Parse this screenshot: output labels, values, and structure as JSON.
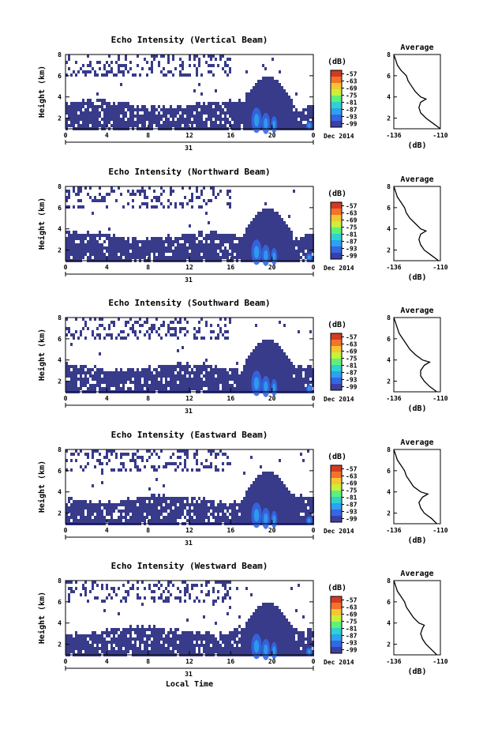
{
  "chart_data": [
    {
      "type": "heatmap",
      "title": "Echo Intensity (Vertical Beam)",
      "ylabel": "Height (km)",
      "xticks": [
        "0",
        "4",
        "8",
        "12",
        "16",
        "20",
        "0"
      ],
      "ylim": [
        1,
        8
      ],
      "yticks": [
        "2",
        "4",
        "6",
        "8"
      ],
      "date_day": "31",
      "date_label": "Dec 2014",
      "xlabel": "",
      "colorbar": {
        "unit": "(dB)",
        "ticks": [
          "-57",
          "-63",
          "-69",
          "-75",
          "-81",
          "-87",
          "-93",
          "-99"
        ]
      },
      "profile": {
        "title": "Average",
        "xlabel": "(dB)",
        "xticks": [
          "-136",
          "-110"
        ],
        "yticks": [
          "2",
          "4",
          "6",
          "8"
        ],
        "height_km": [
          1.0,
          1.5,
          2.0,
          2.5,
          3.0,
          3.5,
          3.8,
          4.0,
          4.5,
          5.0,
          5.5,
          6.0,
          6.5,
          7.0,
          7.5,
          8.0
        ],
        "db": [
          -110,
          -114,
          -118,
          -121,
          -122,
          -121,
          -118,
          -121,
          -124,
          -126,
          -128,
          -129,
          -132,
          -134,
          -135,
          -136
        ]
      }
    },
    {
      "type": "heatmap",
      "title": "Echo Intensity (Northward Beam)",
      "ylabel": "Height (km)",
      "xticks": [
        "0",
        "4",
        "8",
        "12",
        "16",
        "20",
        "0"
      ],
      "ylim": [
        1,
        8
      ],
      "yticks": [
        "2",
        "4",
        "6",
        "8"
      ],
      "date_day": "31",
      "date_label": "Dec 2014",
      "xlabel": "",
      "colorbar": {
        "unit": "(dB)",
        "ticks": [
          "-57",
          "-63",
          "-69",
          "-75",
          "-81",
          "-87",
          "-93",
          "-99"
        ]
      },
      "profile": {
        "title": "Average",
        "xlabel": "(dB)",
        "xticks": [
          "-136",
          "-110"
        ],
        "yticks": [
          "2",
          "4",
          "6",
          "8"
        ],
        "height_km": [
          1.0,
          1.5,
          2.0,
          2.5,
          3.0,
          3.5,
          3.8,
          4.0,
          4.5,
          5.0,
          5.5,
          6.0,
          6.5,
          7.0,
          7.5,
          8.0
        ],
        "db": [
          -111,
          -115,
          -119,
          -121,
          -122,
          -121,
          -118,
          -121,
          -124,
          -127,
          -129,
          -130,
          -132,
          -134,
          -135,
          -136
        ]
      }
    },
    {
      "type": "heatmap",
      "title": "Echo Intensity (Southward Beam)",
      "ylabel": "Height (km)",
      "xticks": [
        "0",
        "4",
        "8",
        "12",
        "16",
        "20",
        "0"
      ],
      "ylim": [
        1,
        8
      ],
      "yticks": [
        "2",
        "4",
        "6",
        "8"
      ],
      "date_day": "31",
      "date_label": "Dec 2014",
      "xlabel": "",
      "colorbar": {
        "unit": "(dB)",
        "ticks": [
          "-57",
          "-63",
          "-69",
          "-75",
          "-81",
          "-87",
          "-93",
          "-99"
        ]
      },
      "profile": {
        "title": "Average",
        "xlabel": "(dB)",
        "xticks": [
          "-136",
          "-110"
        ],
        "yticks": [
          "2",
          "4",
          "6",
          "8"
        ],
        "height_km": [
          1.0,
          1.5,
          2.0,
          2.5,
          3.0,
          3.5,
          3.8,
          4.0,
          4.5,
          5.0,
          5.5,
          6.0,
          6.5,
          7.0,
          7.5,
          8.0
        ],
        "db": [
          -112,
          -116,
          -119,
          -121,
          -121,
          -119,
          -116,
          -120,
          -124,
          -127,
          -129,
          -131,
          -133,
          -134,
          -135,
          -136
        ]
      }
    },
    {
      "type": "heatmap",
      "title": "Echo Intensity (Eastward Beam)",
      "ylabel": "Height (km)",
      "xticks": [
        "0",
        "4",
        "8",
        "12",
        "16",
        "20",
        "0"
      ],
      "ylim": [
        1,
        8
      ],
      "yticks": [
        "2",
        "4",
        "6",
        "8"
      ],
      "date_day": "31",
      "date_label": "Dec 2014",
      "xlabel": "",
      "colorbar": {
        "unit": "(dB)",
        "ticks": [
          "-57",
          "-63",
          "-69",
          "-75",
          "-81",
          "-87",
          "-93",
          "-99"
        ]
      },
      "profile": {
        "title": "Average",
        "xlabel": "(dB)",
        "xticks": [
          "-136",
          "-110"
        ],
        "yticks": [
          "2",
          "4",
          "6",
          "8"
        ],
        "height_km": [
          1.0,
          1.5,
          2.0,
          2.5,
          3.0,
          3.5,
          3.8,
          4.0,
          4.5,
          5.0,
          5.5,
          6.0,
          6.5,
          7.0,
          7.5,
          8.0
        ],
        "db": [
          -112,
          -115,
          -119,
          -121,
          -122,
          -120,
          -117,
          -121,
          -125,
          -127,
          -129,
          -130,
          -132,
          -134,
          -135,
          -136
        ]
      }
    },
    {
      "type": "heatmap",
      "title": "Echo Intensity (Westward Beam)",
      "ylabel": "Height (km)",
      "xticks": [
        "0",
        "4",
        "8",
        "12",
        "16",
        "20",
        "0"
      ],
      "ylim": [
        1,
        8
      ],
      "yticks": [
        "2",
        "4",
        "6",
        "8"
      ],
      "date_day": "31",
      "date_label": "Dec 2014",
      "xlabel": "Local Time",
      "colorbar": {
        "unit": "(dB)",
        "ticks": [
          "-57",
          "-63",
          "-69",
          "-75",
          "-81",
          "-87",
          "-93",
          "-99"
        ]
      },
      "profile": {
        "title": "Average",
        "xlabel": "(dB)",
        "xticks": [
          "-136",
          "-110"
        ],
        "yticks": [
          "2",
          "4",
          "6",
          "8"
        ],
        "height_km": [
          1.0,
          1.5,
          2.0,
          2.5,
          3.0,
          3.5,
          3.8,
          4.0,
          4.5,
          5.0,
          5.5,
          6.0,
          6.5,
          7.0,
          7.5,
          8.0
        ],
        "db": [
          -112,
          -115,
          -118,
          -120,
          -121,
          -120,
          -119,
          -122,
          -125,
          -127,
          -129,
          -130,
          -132,
          -134,
          -135,
          -136
        ]
      }
    }
  ],
  "colors": {
    "background_echo": "#383b8a",
    "colormap": [
      "#3b3fa5",
      "#3567e3",
      "#2ba3f0",
      "#2fd2d0",
      "#5ff07a",
      "#c9f03a",
      "#f7c532",
      "#f4722a",
      "#d43a23"
    ]
  }
}
